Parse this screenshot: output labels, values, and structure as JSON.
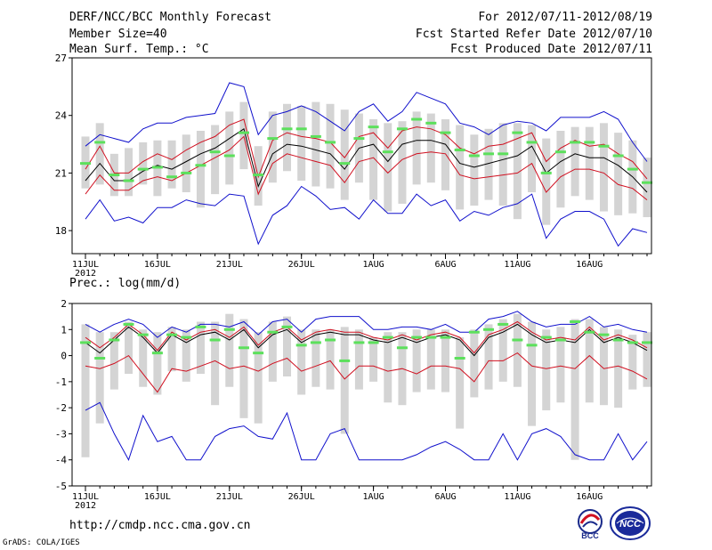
{
  "header": {
    "title": "DERF/NCC/BCC Monthly Forecast",
    "member_size": "Member Size=40",
    "variable1": "Mean Surf. Temp.: °C",
    "forecast_period": "For 2012/07/11-2012/08/19",
    "start_date": "Fcst Started Refer Date 2012/07/10",
    "produced_date": "Fcst Produced Date 2012/07/11"
  },
  "footer": {
    "url": "http://cmdp.ncc.cma.gov.cn",
    "grads": "GrADS: COLA/IGES",
    "logo_bcc_text": "BCC",
    "logo_ncc_text": "NCC"
  },
  "colors": {
    "box": "#d4d4d4",
    "median": "#5ce05c",
    "mean": "#000000",
    "std_band": "#d01020",
    "extreme": "#1010cc"
  },
  "chart_data": [
    {
      "type": "line",
      "title": "Mean Surf. Temp.: °C",
      "x": [
        1,
        2,
        3,
        4,
        5,
        6,
        7,
        8,
        9,
        10,
        11,
        12,
        13,
        14,
        15,
        16,
        17,
        18,
        19,
        20,
        21,
        22,
        23,
        24,
        25,
        26,
        27,
        28,
        29,
        30,
        31,
        32,
        33,
        34,
        35,
        36,
        37,
        38,
        39,
        40
      ],
      "x_tick_labels": [
        "11JUL",
        "16JUL",
        "21JUL",
        "26JUL",
        "1AUG",
        "6AUG",
        "11AUG",
        "16AUG"
      ],
      "x_tick_positions": [
        1,
        6,
        11,
        16,
        21,
        26,
        31,
        36
      ],
      "x_sub_label": "2012",
      "ylim": [
        16.8,
        27
      ],
      "yticks": [
        18,
        21,
        24,
        27
      ],
      "series": [
        {
          "name": "max",
          "values": [
            22.4,
            23.0,
            22.8,
            22.6,
            23.3,
            23.6,
            23.6,
            23.9,
            24.0,
            24.1,
            25.7,
            25.5,
            23.0,
            24.0,
            24.2,
            24.5,
            24.2,
            23.7,
            23.2,
            24.2,
            24.6,
            23.7,
            24.2,
            25.2,
            24.9,
            24.6,
            23.6,
            23.4,
            23.0,
            23.5,
            23.7,
            23.6,
            23.2,
            23.9,
            23.9,
            23.9,
            24.2,
            23.8,
            22.6,
            21.6
          ]
        },
        {
          "name": "plus_std",
          "values": [
            21.2,
            22.4,
            21.0,
            21.0,
            21.6,
            22.0,
            21.7,
            22.2,
            22.6,
            22.9,
            23.5,
            23.8,
            20.8,
            22.7,
            23.1,
            22.9,
            22.8,
            22.6,
            21.8,
            22.9,
            23.1,
            22.3,
            23.2,
            23.4,
            23.3,
            23.0,
            22.3,
            22.0,
            22.4,
            22.5,
            22.8,
            23.1,
            21.6,
            22.3,
            22.7,
            22.4,
            22.5,
            22.0,
            21.6,
            20.7
          ]
        },
        {
          "name": "mean",
          "values": [
            20.6,
            21.5,
            20.6,
            20.6,
            21.1,
            21.4,
            21.2,
            21.6,
            22.0,
            22.3,
            22.8,
            23.3,
            20.3,
            22.0,
            22.5,
            22.4,
            22.2,
            22.0,
            21.2,
            22.3,
            22.5,
            21.6,
            22.5,
            22.7,
            22.7,
            22.5,
            21.5,
            21.3,
            21.5,
            21.7,
            21.9,
            22.4,
            21.0,
            21.6,
            22.0,
            21.8,
            21.8,
            21.4,
            20.8,
            20.0
          ]
        },
        {
          "name": "minus_std",
          "values": [
            19.9,
            20.9,
            20.1,
            20.1,
            20.6,
            20.8,
            20.6,
            21.0,
            21.4,
            21.8,
            22.2,
            22.9,
            19.9,
            21.5,
            22.0,
            21.8,
            21.6,
            21.4,
            20.5,
            21.6,
            21.8,
            21.0,
            21.7,
            22.0,
            22.1,
            22.0,
            20.9,
            20.7,
            20.8,
            20.9,
            21.0,
            21.5,
            20.0,
            20.8,
            21.2,
            21.2,
            21.0,
            20.4,
            20.2,
            19.6
          ]
        },
        {
          "name": "min",
          "values": [
            18.6,
            19.6,
            18.5,
            18.7,
            18.4,
            19.2,
            19.2,
            19.6,
            19.4,
            19.3,
            19.9,
            19.8,
            17.3,
            18.8,
            19.3,
            20.3,
            19.8,
            19.1,
            19.2,
            18.6,
            19.6,
            18.9,
            18.9,
            19.9,
            19.3,
            19.6,
            18.5,
            19.0,
            18.8,
            19.2,
            19.4,
            19.9,
            17.6,
            18.6,
            19.0,
            19.0,
            18.6,
            17.2,
            18.1,
            17.9
          ]
        },
        {
          "name": "median",
          "values": [
            21.5,
            22.6,
            20.9,
            20.6,
            21.2,
            21.3,
            20.8,
            21.0,
            21.4,
            22.1,
            21.9,
            23.1,
            20.9,
            22.8,
            23.3,
            23.3,
            22.9,
            22.6,
            21.5,
            22.8,
            23.4,
            22.1,
            23.3,
            23.8,
            23.6,
            23.1,
            22.2,
            21.9,
            22.0,
            22.0,
            23.1,
            22.6,
            21.0,
            22.1,
            22.6,
            22.6,
            22.4,
            21.9,
            21.2,
            20.5
          ]
        },
        {
          "name": "box_top",
          "values": [
            22.9,
            23.6,
            22.0,
            22.3,
            22.6,
            22.7,
            22.7,
            23.0,
            23.2,
            23.5,
            24.2,
            24.7,
            22.4,
            24.2,
            24.6,
            24.5,
            24.7,
            24.6,
            24.3,
            24.1,
            23.8,
            23.6,
            23.7,
            24.2,
            24.1,
            23.8,
            23.5,
            23.0,
            23.3,
            23.6,
            23.6,
            23.5,
            22.8,
            23.2,
            23.4,
            23.4,
            23.6,
            23.1,
            22.7,
            21.8
          ]
        },
        {
          "name": "box_bottom",
          "values": [
            20.2,
            20.4,
            19.8,
            19.8,
            20.4,
            19.8,
            20.2,
            20.0,
            19.2,
            19.9,
            20.4,
            21.2,
            19.3,
            20.5,
            21.1,
            20.6,
            20.3,
            20.2,
            19.6,
            20.5,
            19.6,
            19.0,
            19.4,
            20.4,
            20.5,
            20.1,
            19.1,
            19.3,
            19.6,
            19.3,
            18.6,
            20.0,
            18.3,
            19.2,
            19.8,
            19.6,
            19.0,
            18.8,
            18.9,
            18.7
          ]
        }
      ]
    },
    {
      "type": "line",
      "title": "Prec.: log(mm/d)",
      "x": [
        1,
        2,
        3,
        4,
        5,
        6,
        7,
        8,
        9,
        10,
        11,
        12,
        13,
        14,
        15,
        16,
        17,
        18,
        19,
        20,
        21,
        22,
        23,
        24,
        25,
        26,
        27,
        28,
        29,
        30,
        31,
        32,
        33,
        34,
        35,
        36,
        37,
        38,
        39,
        40
      ],
      "x_tick_labels": [
        "11JUL",
        "16JUL",
        "21JUL",
        "26JUL",
        "1AUG",
        "6AUG",
        "11AUG",
        "16AUG"
      ],
      "x_tick_positions": [
        1,
        6,
        11,
        16,
        21,
        26,
        31,
        36
      ],
      "x_sub_label": "2012",
      "ylim": [
        -5,
        2
      ],
      "yticks": [
        -5,
        -4,
        -3,
        -2,
        -1,
        0,
        1,
        2
      ],
      "series": [
        {
          "name": "max",
          "values": [
            1.2,
            0.9,
            1.2,
            1.4,
            1.2,
            0.7,
            1.1,
            0.9,
            1.2,
            1.2,
            1.1,
            1.3,
            0.8,
            1.3,
            1.4,
            0.9,
            1.4,
            1.5,
            1.5,
            1.5,
            1.0,
            1.0,
            1.1,
            1.1,
            1.0,
            1.2,
            0.9,
            0.9,
            1.4,
            1.5,
            1.7,
            1.3,
            1.1,
            1.2,
            1.2,
            1.5,
            1.1,
            1.2,
            1.0,
            0.9
          ]
        },
        {
          "name": "plus_std",
          "values": [
            0.7,
            0.3,
            0.7,
            1.2,
            0.8,
            0.2,
            0.9,
            0.6,
            0.9,
            1.0,
            0.7,
            1.1,
            0.4,
            0.9,
            1.1,
            0.6,
            0.9,
            1.0,
            0.9,
            0.9,
            0.7,
            0.6,
            0.8,
            0.6,
            0.8,
            0.9,
            0.7,
            0.1,
            0.8,
            1.0,
            1.3,
            0.9,
            0.6,
            0.7,
            0.6,
            1.1,
            0.6,
            0.8,
            0.6,
            0.3
          ]
        },
        {
          "name": "mean",
          "values": [
            0.5,
            0.1,
            0.6,
            1.1,
            0.7,
            0.1,
            0.8,
            0.5,
            0.8,
            0.9,
            0.6,
            1.0,
            0.3,
            0.8,
            1.0,
            0.5,
            0.8,
            0.9,
            0.8,
            0.8,
            0.6,
            0.5,
            0.7,
            0.5,
            0.7,
            0.8,
            0.6,
            0.0,
            0.7,
            0.9,
            1.2,
            0.8,
            0.5,
            0.6,
            0.5,
            1.0,
            0.5,
            0.7,
            0.5,
            0.2
          ]
        },
        {
          "name": "minus_std",
          "values": [
            -0.4,
            -0.5,
            -0.3,
            0.0,
            -0.7,
            -1.4,
            -0.5,
            -0.6,
            -0.4,
            -0.2,
            -0.5,
            -0.4,
            -0.6,
            -0.3,
            -0.1,
            -0.6,
            -0.4,
            -0.2,
            -0.9,
            -0.4,
            -0.4,
            -0.6,
            -0.5,
            -0.7,
            -0.4,
            -0.4,
            -0.5,
            -1.0,
            -0.2,
            -0.2,
            0.1,
            -0.4,
            -0.5,
            -0.4,
            -0.5,
            0.0,
            -0.5,
            -0.4,
            -0.6,
            -0.9
          ]
        },
        {
          "name": "min",
          "values": [
            -2.1,
            -1.8,
            -3.0,
            -4.0,
            -2.3,
            -3.3,
            -3.1,
            -4.0,
            -4.0,
            -3.1,
            -2.8,
            -2.7,
            -3.1,
            -3.2,
            -2.2,
            -4.0,
            -4.0,
            -3.0,
            -2.8,
            -4.0,
            -4.0,
            -4.0,
            -4.0,
            -3.8,
            -3.5,
            -3.3,
            -3.6,
            -4.0,
            -4.0,
            -3.0,
            -4.0,
            -3.0,
            -2.8,
            -3.1,
            -3.8,
            -4.0,
            -4.0,
            -3.0,
            -4.0,
            -3.3
          ]
        },
        {
          "name": "median",
          "values": [
            0.5,
            -0.1,
            0.6,
            1.2,
            0.8,
            0.1,
            0.8,
            0.7,
            1.1,
            0.6,
            1.0,
            0.3,
            0.1,
            0.9,
            1.1,
            0.4,
            0.5,
            0.6,
            -0.2,
            0.5,
            0.5,
            0.7,
            0.3,
            0.7,
            0.7,
            0.7,
            -0.1,
            0.9,
            1.0,
            1.2,
            0.6,
            0.4,
            0.7,
            0.6,
            1.3,
            0.9,
            0.8,
            0.6,
            0.5,
            0.5
          ]
        },
        {
          "name": "box_top",
          "values": [
            1.2,
            0.9,
            0.9,
            1.3,
            1.0,
            0.9,
            1.1,
            1.0,
            1.3,
            1.3,
            1.6,
            1.4,
            0.9,
            1.3,
            1.5,
            1.0,
            1.0,
            1.0,
            1.1,
            1.0,
            0.7,
            0.9,
            0.9,
            1.0,
            1.0,
            1.0,
            0.7,
            1.0,
            1.2,
            1.4,
            1.6,
            1.3,
            1.0,
            1.1,
            1.4,
            1.4,
            1.1,
            1.0,
            0.8,
            0.9
          ]
        },
        {
          "name": "box_bottom",
          "values": [
            -3.9,
            -2.6,
            -1.3,
            -0.7,
            -1.2,
            -1.5,
            -0.6,
            -1.0,
            -0.7,
            -1.9,
            -1.2,
            -2.4,
            -2.6,
            -1.0,
            -0.8,
            -1.5,
            -1.2,
            -1.3,
            -3.0,
            -1.3,
            -1.0,
            -1.8,
            -1.9,
            -1.4,
            -1.3,
            -1.4,
            -2.8,
            -1.6,
            -1.3,
            -1.0,
            -1.2,
            -2.7,
            -2.1,
            -1.8,
            -4.0,
            -1.8,
            -1.9,
            -2.0,
            -1.3,
            -1.2
          ]
        }
      ]
    }
  ]
}
